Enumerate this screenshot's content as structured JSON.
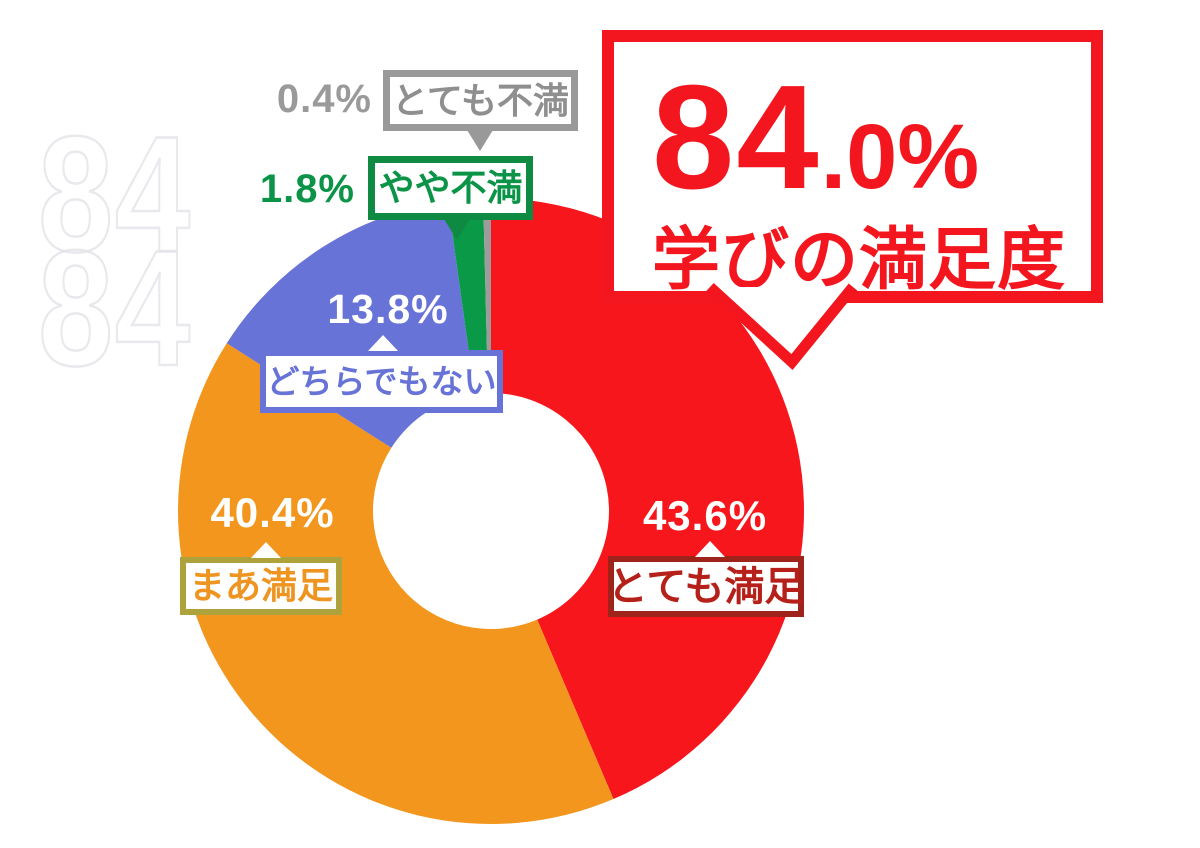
{
  "callout": {
    "number": "84",
    "suffix": ".0%",
    "value_display": "84.0%",
    "title": "学びの満足度",
    "accent_color": "#f3161e"
  },
  "watermark": {
    "text": "84"
  },
  "chart_data": {
    "type": "pie",
    "subtype": "donut",
    "title": "学びの満足度",
    "unit": "%",
    "direction": "clockwise-from-top",
    "legend": "none",
    "highlight_total": {
      "value": 84.0,
      "display": "84.0%",
      "meaning": "とても満足 + まあ満足"
    },
    "segments": [
      {
        "id": "very-satisfied",
        "label": "とても満足",
        "value": 43.6,
        "pct_display": "43.6%",
        "color": "#f6161b",
        "accent_dark": "#9e231a",
        "text_color": "#b5201a",
        "pct_text_color": "#ffffff"
      },
      {
        "id": "somewhat-satisfied",
        "label": "まあ満足",
        "value": 40.4,
        "pct_display": "40.4%",
        "color": "#f3961d",
        "accent_dark": "#ada23c",
        "text_color": "#ee9421",
        "pct_text_color": "#ffffff"
      },
      {
        "id": "neutral",
        "label": "どちらでもない",
        "value": 13.8,
        "pct_display": "13.8%",
        "color": "#6873d8",
        "accent_dark": "#6873d8",
        "text_color": "#6873d8",
        "pct_text_color": "#ffffff"
      },
      {
        "id": "somewhat-dissatisfied",
        "label": "やや不満",
        "value": 1.8,
        "pct_display": "1.8%",
        "color": "#0a9a47",
        "accent_dark": "#0e8a43",
        "text_color": "#0b9447",
        "pct_text_color": "#0b9447"
      },
      {
        "id": "very-dissatisfied",
        "label": "とても不満",
        "value": 0.4,
        "pct_display": "0.4%",
        "color": "#9c9c9c",
        "accent_dark": "#999999",
        "text_color": "#8f8f8f",
        "pct_text_color": "#9a9a9a"
      }
    ]
  }
}
